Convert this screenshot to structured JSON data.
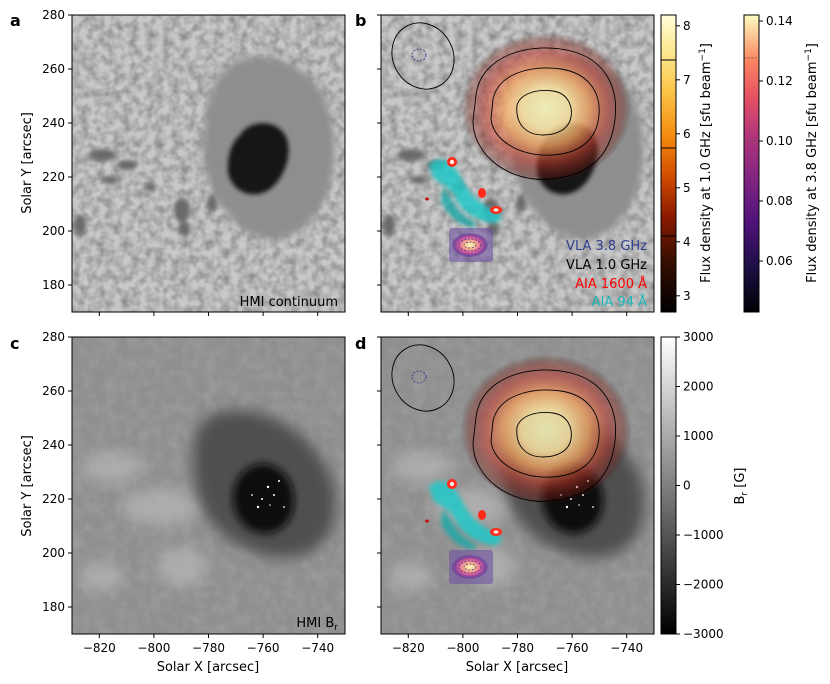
{
  "panels": [
    {
      "letter": "a",
      "caption": "HMI continuum"
    },
    {
      "letter": "b"
    },
    {
      "letter": "c",
      "caption": "HMI B",
      "caption_sub": "r"
    },
    {
      "letter": "d"
    }
  ],
  "axes": {
    "xlabel": "Solar X [arcsec]",
    "ylabel": "Solar Y [arcsec]",
    "xticks": [
      "−820",
      "−800",
      "−780",
      "−760",
      "−740"
    ],
    "yticks": [
      "280",
      "260",
      "240",
      "220",
      "200",
      "180"
    ],
    "xlim": [
      -830,
      -730
    ],
    "ylim": [
      170,
      280
    ]
  },
  "legend": [
    {
      "label": "VLA 3.8 GHz",
      "color": "#2f3f8f"
    },
    {
      "label": "VLA 1.0 GHz",
      "color": "#000000"
    },
    {
      "label": "AIA 1600 Å",
      "color": "#ff0000"
    },
    {
      "label": "AIA 94 Å",
      "color": "#1ab5b5"
    }
  ],
  "colorbars": {
    "flux_1ghz": {
      "label": "Flux density at 1.0 GHz [sfu beam",
      "label_sup": "−1",
      "label_end": "]",
      "ticks": [
        "8",
        "7",
        "6",
        "5",
        "4",
        "3"
      ],
      "range": [
        2.7,
        8.2
      ]
    },
    "flux_38ghz": {
      "label": "Flux density at 3.8 GHz [sfu beam",
      "label_sup": "−1",
      "label_end": "]",
      "ticks": [
        "0.14",
        "0.12",
        "0.10",
        "0.08",
        "0.06"
      ],
      "range": [
        0.043,
        0.142
      ]
    },
    "br": {
      "label": "B",
      "label_sub": "r",
      "label_end": " [G]",
      "ticks": [
        "3000",
        "2000",
        "1000",
        "0",
        "−1000",
        "−2000",
        "−3000"
      ],
      "range": [
        -3000,
        3000
      ]
    }
  }
}
